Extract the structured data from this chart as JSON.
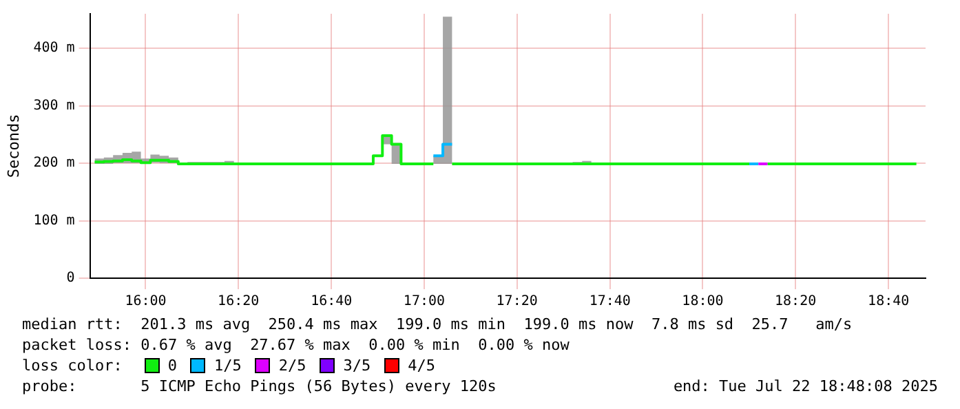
{
  "chart_data": {
    "type": "line",
    "ylabel": "Seconds",
    "legend_title": "loss color:",
    "x": [
      15.817,
      15.85,
      15.85,
      15.883,
      15.883,
      15.917,
      15.917,
      15.95,
      15.95,
      15.983,
      15.983,
      16.017,
      16.017,
      16.05,
      16.05,
      16.083,
      16.083,
      16.117,
      16.117,
      16.15,
      16.15,
      16.283,
      16.283,
      16.317,
      16.317,
      16.817,
      16.817,
      16.85,
      16.85,
      16.883,
      16.883,
      16.917,
      16.917,
      17.033,
      17.033,
      17.067,
      17.067,
      17.1,
      17.1,
      17.533,
      17.533,
      17.567,
      17.567,
      17.6,
      17.6,
      18.167,
      18.167,
      18.2,
      18.2,
      18.233,
      18.233,
      18.767
    ],
    "series": [
      {
        "name": "0",
        "color": "#11ee11",
        "values": [
          202,
          202,
          203,
          203,
          204,
          204,
          206,
          206,
          204,
          204,
          201,
          201,
          205,
          205,
          205,
          205,
          203,
          203,
          199,
          199,
          199,
          199,
          199,
          199,
          199,
          199,
          213,
          213,
          248,
          248,
          233,
          233,
          199,
          199,
          null,
          null,
          null,
          null,
          199,
          199,
          199,
          199,
          199,
          199,
          199,
          199,
          null,
          null,
          null,
          null,
          199,
          199
        ],
        "lower": [
          199,
          199,
          199,
          199,
          200,
          200,
          200,
          200,
          200,
          200,
          200,
          200,
          201,
          201,
          200,
          200,
          200,
          200,
          199,
          199,
          199,
          199,
          199,
          199,
          199,
          199,
          213,
          213,
          233,
          233,
          199,
          199,
          199,
          199,
          199,
          199,
          199,
          199,
          199,
          199,
          199,
          199,
          199,
          199,
          199,
          199,
          199,
          199,
          199,
          199,
          199,
          199
        ],
        "upper": [
          208,
          208,
          210,
          210,
          214,
          214,
          218,
          218,
          220,
          220,
          208,
          208,
          215,
          215,
          213,
          213,
          210,
          210,
          199,
          199,
          202,
          202,
          204,
          204,
          199,
          199,
          213,
          213,
          250,
          250,
          235,
          235,
          199,
          199,
          213,
          213,
          455,
          455,
          199,
          199,
          202,
          202,
          204,
          204,
          199,
          199,
          199,
          199,
          199,
          199,
          199,
          199
        ]
      },
      {
        "name": "1/5",
        "color": "#00b8ff",
        "x": [
          17.033,
          17.067,
          17.067,
          17.1
        ],
        "values": [
          213,
          213,
          233,
          233
        ]
      },
      {
        "name": "2/5",
        "color": "#dd00ff",
        "x": [
          18.2,
          18.233
        ],
        "values": [
          199,
          199
        ]
      },
      {
        "name": "3/5",
        "color": "#7f00ff",
        "values": [
          null,
          null,
          null,
          null,
          null,
          null,
          null,
          null,
          null,
          null,
          null,
          null,
          null,
          null,
          null,
          null,
          null,
          null,
          null,
          null,
          null,
          null,
          null,
          null,
          null,
          null,
          null,
          null,
          null,
          null,
          null,
          null,
          null,
          null,
          null,
          null,
          null,
          null,
          null,
          null,
          null,
          null,
          null,
          null,
          null,
          null,
          null,
          null,
          null,
          null,
          null,
          null
        ]
      },
      {
        "name": "4/5",
        "color": "#ff0000",
        "values": [
          null,
          null,
          null,
          null,
          null,
          null,
          null,
          null,
          null,
          null,
          null,
          null,
          null,
          null,
          null,
          null,
          null,
          null,
          null,
          null,
          null,
          null,
          null,
          null,
          null,
          null,
          null,
          null,
          null,
          null,
          null,
          null,
          null,
          null,
          null,
          null,
          null,
          null,
          null,
          null,
          null,
          null,
          null,
          null,
          null,
          null,
          null,
          null,
          null,
          null,
          null,
          null
        ]
      },
      {
        "color": "#00b8ff",
        "x": [
          18.167,
          18.2
        ],
        "values": [
          199,
          199
        ]
      }
    ],
    "xlim": [
      15.8,
      18.8
    ],
    "xticks": [
      {
        "value": 16,
        "label": "16:00"
      },
      {
        "value": 16.333,
        "label": "16:20"
      },
      {
        "value": 16.667,
        "label": "16:40"
      },
      {
        "value": 17,
        "label": "17:00"
      },
      {
        "value": 17.333,
        "label": "17:20"
      },
      {
        "value": 17.667,
        "label": "17:40"
      },
      {
        "value": 18,
        "label": "18:00"
      },
      {
        "value": 18.333,
        "label": "18:20"
      },
      {
        "value": 18.667,
        "label": "18:40"
      }
    ],
    "ylim": [
      0,
      460
    ],
    "yticks": [
      0,
      {
        "value": 100,
        "label": "100 m"
      },
      {
        "value": 200,
        "label": "200 m"
      },
      {
        "value": 300,
        "label": "300 m"
      },
      {
        "value": 400,
        "label": "400 m"
      }
    ],
    "grid": true,
    "legend": "bottom",
    "annotations": [
      "median rtt:  201.3 ms avg  250.4 ms max  199.0 ms min  199.0 ms now  7.8 ms sd  25.7   am/s",
      "packet loss: 0.67 % avg  27.67 % max  0.00 % min  0.00 % now",
      "probe:       5 ICMP Echo Pings (56 Bytes) every 120s",
      "end: Tue Jul 22 18:48:08 2025"
    ]
  }
}
